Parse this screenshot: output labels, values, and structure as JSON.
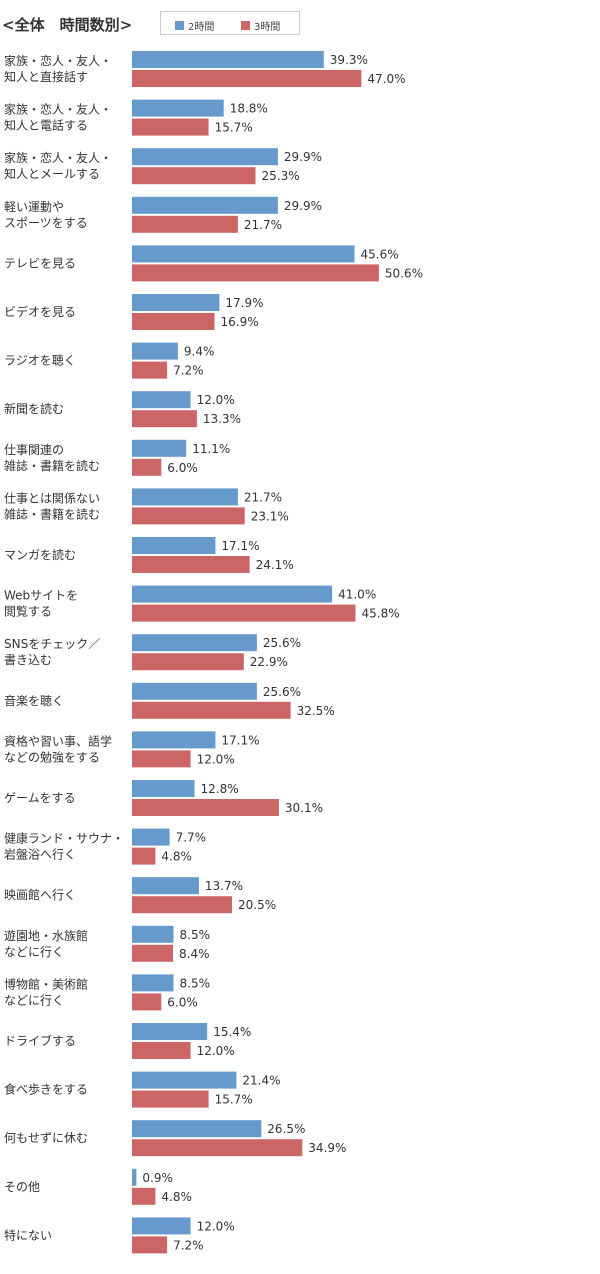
{
  "chart_data": {
    "type": "bar",
    "orientation": "horizontal",
    "title": "<全体　時間数別>",
    "colors": {
      "s1": "#6699cc",
      "s2": "#cc6666"
    },
    "legend_position": "top",
    "xlim": [
      0,
      100
    ],
    "value_suffix": "%",
    "categories": [
      "家族・恋人・友人・\n知人と直接話す",
      "家族・恋人・友人・\n知人と電話する",
      "家族・恋人・友人・\n知人とメールする",
      "軽い運動や\nスポーツをする",
      "テレビを見る",
      "ビデオを見る",
      "ラジオを聴く",
      "新聞を読む",
      "仕事関連の\n雑誌・書籍を読む",
      "仕事とは関係ない\n雑誌・書籍を読む",
      "マンガを読む",
      "Webサイトを\n閲覧する",
      "SNSをチェック／\n書き込む",
      "音楽を聴く",
      "資格や習い事、語学\nなどの勉強をする",
      "ゲームをする",
      "健康ランド・サウナ・\n岩盤浴へ行く",
      "映画館へ行く",
      "遊園地・水族館\nなどに行く",
      "博物館・美術館\nなどに行く",
      "ドライブする",
      "食べ歩きをする",
      "何もせずに休む",
      "その他",
      "特にない"
    ],
    "series": [
      {
        "name": "2時間",
        "values": [
          39.3,
          18.8,
          29.9,
          29.9,
          45.6,
          17.9,
          9.4,
          12.0,
          11.1,
          21.7,
          17.1,
          41.0,
          25.6,
          25.6,
          17.1,
          12.8,
          7.7,
          13.7,
          8.5,
          8.5,
          15.4,
          21.4,
          26.5,
          0.9,
          12.0
        ]
      },
      {
        "name": "3時間",
        "values": [
          47.0,
          15.7,
          25.3,
          21.7,
          50.6,
          16.9,
          7.2,
          13.3,
          6.0,
          23.1,
          24.1,
          45.8,
          22.9,
          32.5,
          12.0,
          30.1,
          4.8,
          20.5,
          8.4,
          6.0,
          12.0,
          15.7,
          34.9,
          4.8,
          7.2
        ]
      }
    ]
  }
}
